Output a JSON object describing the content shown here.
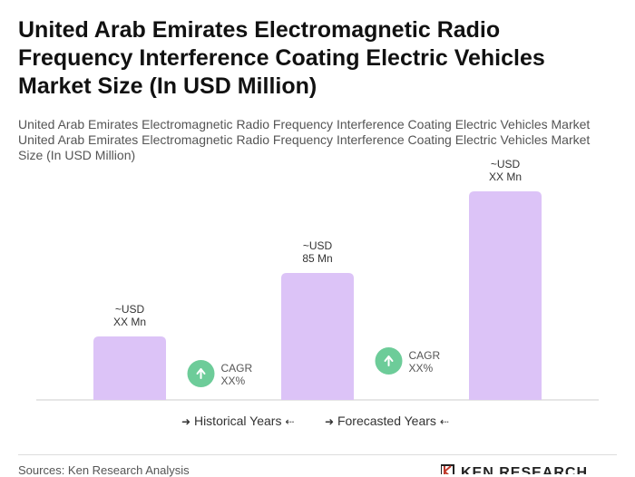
{
  "page": {
    "title_lines": [
      "United Arab Emirates Electromagnetic Radio",
      "Frequency Interference Coating Electric Vehicles",
      "Market Size (In USD Million)"
    ],
    "subtitle_lines": [
      "United Arab Emirates Electromagnetic Radio Frequency Interference Coating Electric Vehicles Market",
      "United Arab Emirates Electromagnetic Radio Frequency Interference Coating Electric Vehicles Market",
      "Size (In USD Million)"
    ],
    "source": "Sources: Ken Research Analysis",
    "logo_text": "KEN RESEARCH"
  },
  "legend": {
    "historical": "Historical Years",
    "forecasted": "Forecasted Years"
  },
  "chart_data": {
    "type": "bar",
    "categories": [
      "",
      "",
      ""
    ],
    "values": [
      35,
      70,
      115
    ],
    "bar_labels": [
      [
        "~USD",
        "XX Mn"
      ],
      [
        "~USD",
        "85 Mn"
      ],
      [
        "~USD",
        "XX Mn"
      ]
    ],
    "cagr_annotations": [
      [
        "CAGR",
        "XX%"
      ],
      [
        "CAGR",
        "XX%"
      ]
    ],
    "ylim": [
      0,
      120
    ],
    "grid": false,
    "colors": {
      "bar": "#dcc3f7",
      "baseline": "#cccccc",
      "cagr_circle": "#6dcc99",
      "label": "#333333"
    }
  }
}
